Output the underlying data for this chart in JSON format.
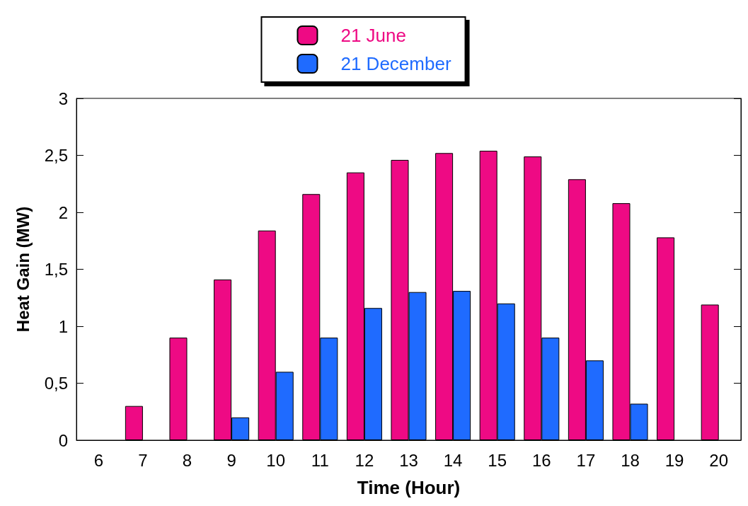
{
  "chart_data": {
    "type": "bar",
    "xlabel": "Time (Hour)",
    "ylabel": "Heat Gain (MW)",
    "categories": [
      "6",
      "7",
      "8",
      "9",
      "10",
      "11",
      "12",
      "13",
      "14",
      "15",
      "16",
      "17",
      "18",
      "19",
      "20"
    ],
    "series": [
      {
        "name": "21 June",
        "color": "#ee0a84",
        "values": [
          null,
          0.3,
          0.9,
          1.41,
          1.84,
          2.16,
          2.35,
          2.46,
          2.52,
          2.54,
          2.49,
          2.29,
          2.08,
          1.78,
          1.19
        ]
      },
      {
        "name": "21 December",
        "color": "#1f6bff",
        "values": [
          null,
          null,
          null,
          0.2,
          0.6,
          0.9,
          1.16,
          1.3,
          1.31,
          1.2,
          0.9,
          0.7,
          0.32,
          null,
          null
        ]
      }
    ],
    "ylim": [
      0,
      3
    ],
    "yticks": [
      0,
      {
        "value": 0.5,
        "label": "0,5"
      },
      1,
      {
        "value": 1.5,
        "label": "1,5"
      },
      2,
      {
        "value": 2.5,
        "label": "2,5"
      },
      3
    ],
    "grid": false,
    "legend": "top"
  }
}
